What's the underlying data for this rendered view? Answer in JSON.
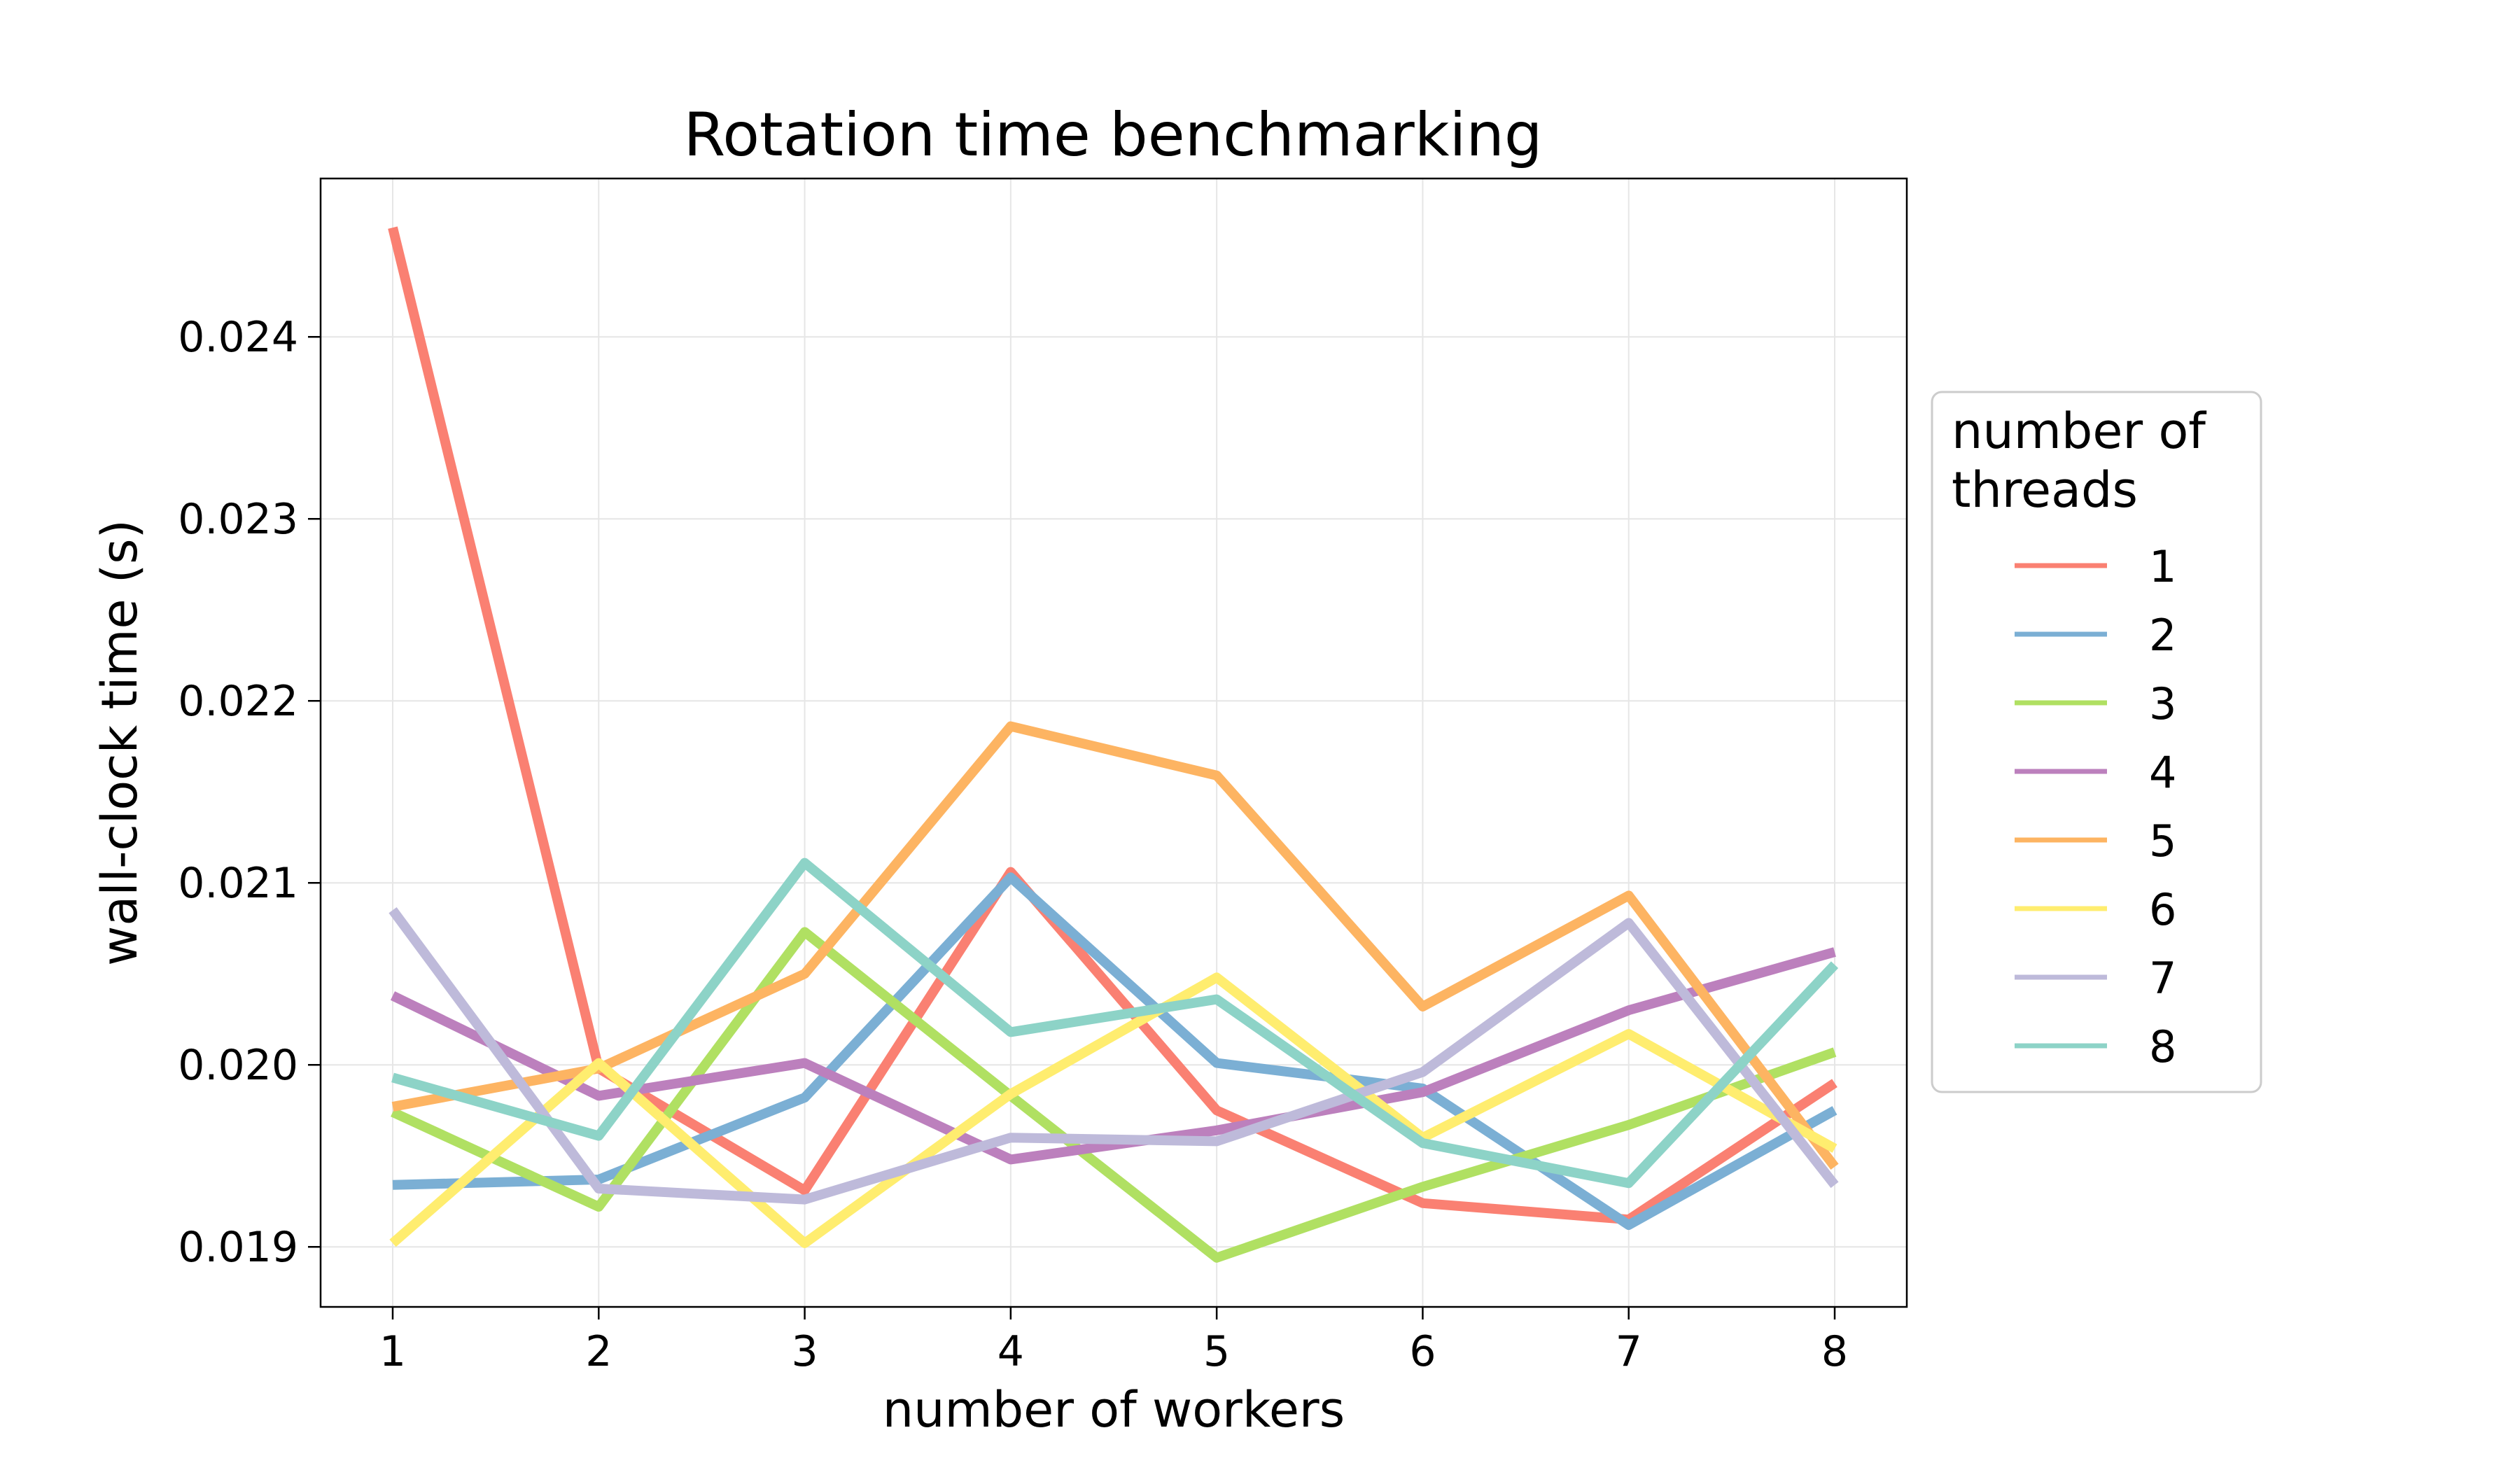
{
  "chart_data": {
    "type": "line",
    "title": "Rotation time benchmarking",
    "xlabel": "number of workers",
    "ylabel": "wall-clock time (s)",
    "x": [
      1,
      2,
      3,
      4,
      5,
      6,
      7,
      8
    ],
    "xlim": [
      0.65,
      8.35
    ],
    "ylim": [
      0.01867,
      0.02487
    ],
    "xticks": [
      1,
      2,
      3,
      4,
      5,
      6,
      7,
      8
    ],
    "xtick_labels": [
      "1",
      "2",
      "3",
      "4",
      "5",
      "6",
      "7",
      "8"
    ],
    "yticks": [
      0.019,
      0.02,
      0.021,
      0.022,
      0.023,
      0.024
    ],
    "ytick_labels": [
      "0.019",
      "0.020",
      "0.021",
      "0.022",
      "0.023",
      "0.024"
    ],
    "grid": true,
    "legend": {
      "title_lines": [
        "number of",
        "threads"
      ],
      "placement": "right-outside"
    },
    "series": [
      {
        "name": "1",
        "color": "#fa8072",
        "values": [
          0.0246,
          0.01998,
          0.01931,
          0.02106,
          0.01975,
          0.01924,
          0.01915,
          0.0199
        ]
      },
      {
        "name": "2",
        "color": "#7bafd4",
        "values": [
          0.01934,
          0.01937,
          0.01982,
          0.02103,
          0.02001,
          0.01987,
          0.01912,
          0.01975
        ]
      },
      {
        "name": "3",
        "color": "#b0e062",
        "values": [
          0.01974,
          0.01922,
          0.02073,
          0.01983,
          0.01894,
          0.01933,
          0.01967,
          0.02007
        ]
      },
      {
        "name": "4",
        "color": "#bc80bd",
        "values": [
          0.02038,
          0.01983,
          0.02001,
          0.01948,
          0.01964,
          0.01985,
          0.0203,
          0.02062
        ]
      },
      {
        "name": "5",
        "color": "#fdb462",
        "values": [
          0.01977,
          0.01998,
          0.0205,
          0.02186,
          0.02159,
          0.02032,
          0.02093,
          0.01944
        ]
      },
      {
        "name": "6",
        "color": "#ffed6f",
        "values": [
          0.01902,
          0.02001,
          0.01902,
          0.01984,
          0.02048,
          0.0196,
          0.02017,
          0.01954
        ]
      },
      {
        "name": "7",
        "color": "#bebada",
        "values": [
          0.02085,
          0.01932,
          0.01926,
          0.0196,
          0.01958,
          0.01996,
          0.02078,
          0.01934
        ]
      },
      {
        "name": "8",
        "color": "#8dd3c7",
        "values": [
          0.01993,
          0.01961,
          0.02111,
          0.02018,
          0.02036,
          0.01957,
          0.01935,
          0.02055
        ]
      }
    ]
  }
}
